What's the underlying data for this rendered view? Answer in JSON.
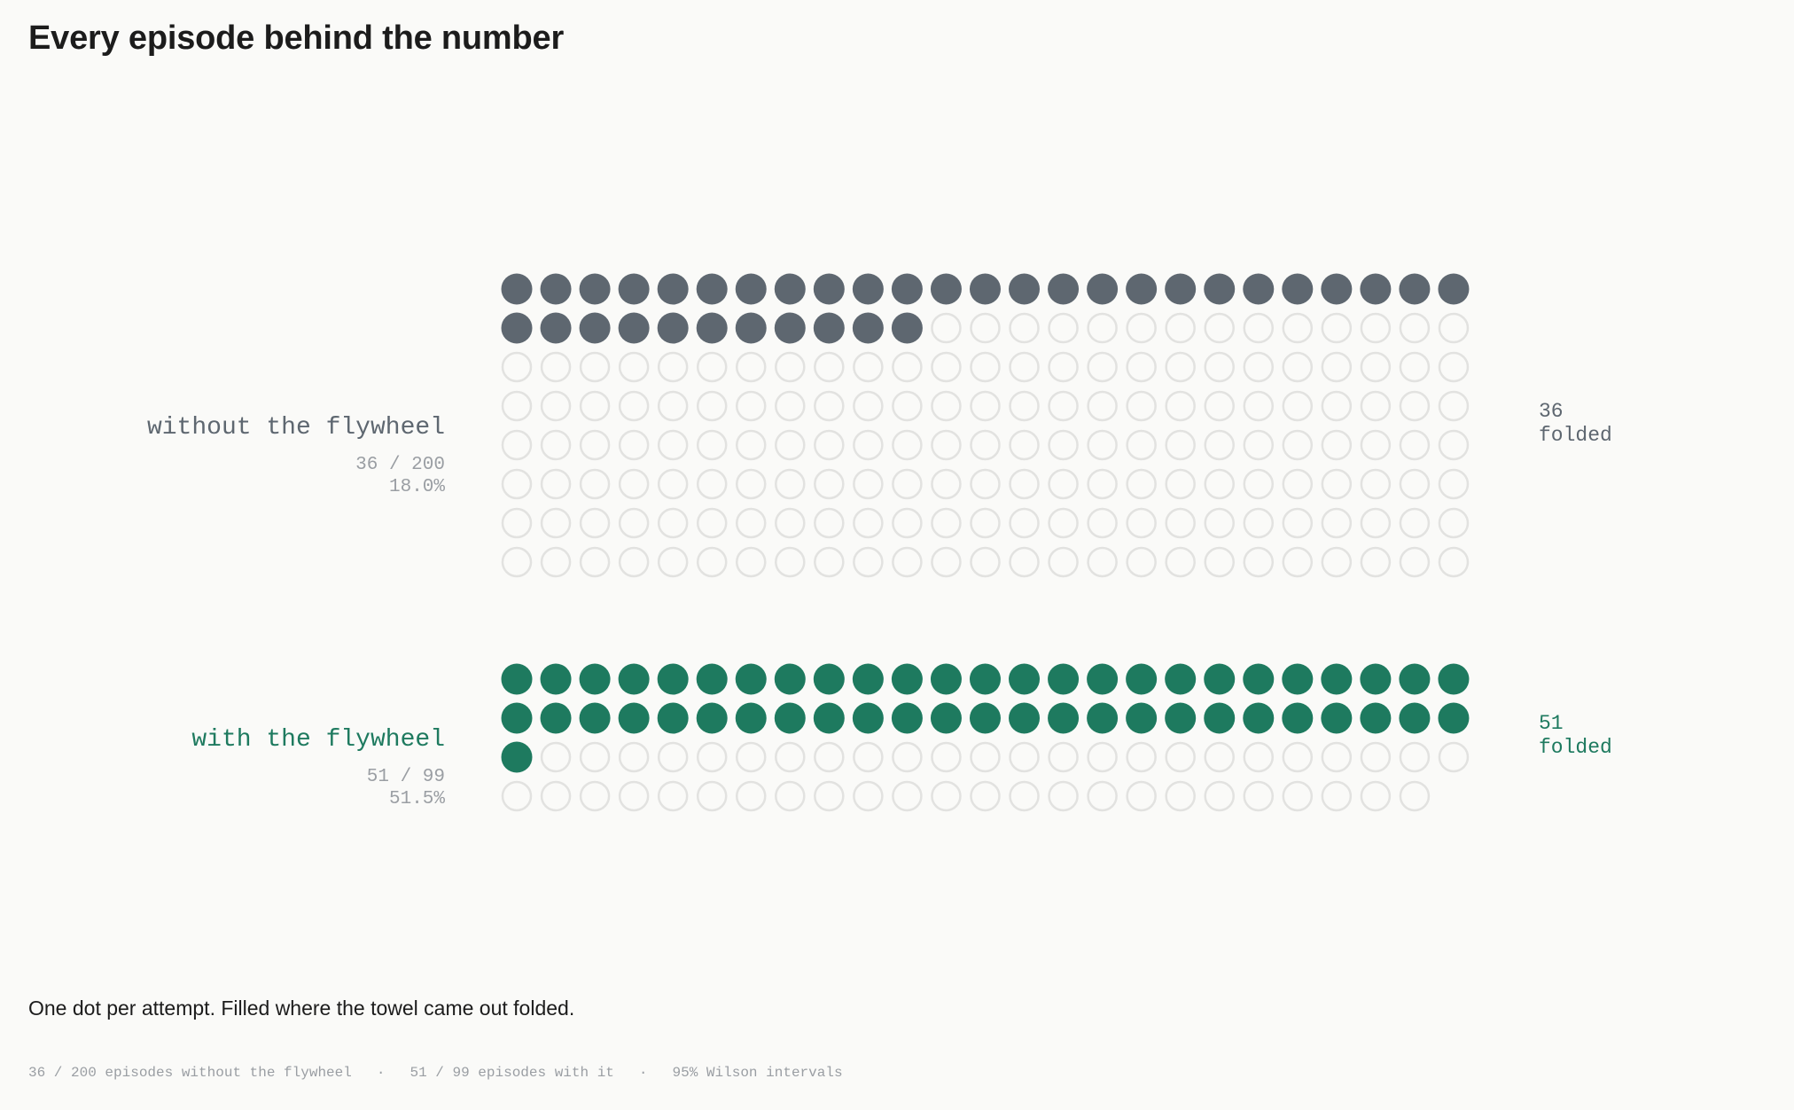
{
  "page": {
    "title": "Every episode behind the number",
    "caption": "One dot per attempt. Filled where the towel came out folded."
  },
  "footnote": {
    "items": [
      "36 / 200 episodes without the flywheel",
      "51 / 99 episodes with it",
      "95% Wilson intervals"
    ],
    "separator": "·"
  },
  "chart_data": {
    "type": "waffle",
    "title": "Every episode behind the number",
    "dots_per_row": 25,
    "groups": [
      {
        "label": "without the flywheel",
        "successes": 36,
        "total": 200,
        "count_text": "36 / 200",
        "percent_text": "18.0%",
        "side_value": "36",
        "side_unit": "folded",
        "color": "#5e6770"
      },
      {
        "label": "with the flywheel",
        "successes": 51,
        "total": 99,
        "count_text": "51 / 99",
        "percent_text": "51.5%",
        "side_value": "51",
        "side_unit": "folded",
        "color": "#1e7a5f"
      }
    ],
    "empty_color": "#e2e2e0",
    "label_color": "#9a9ea3"
  }
}
